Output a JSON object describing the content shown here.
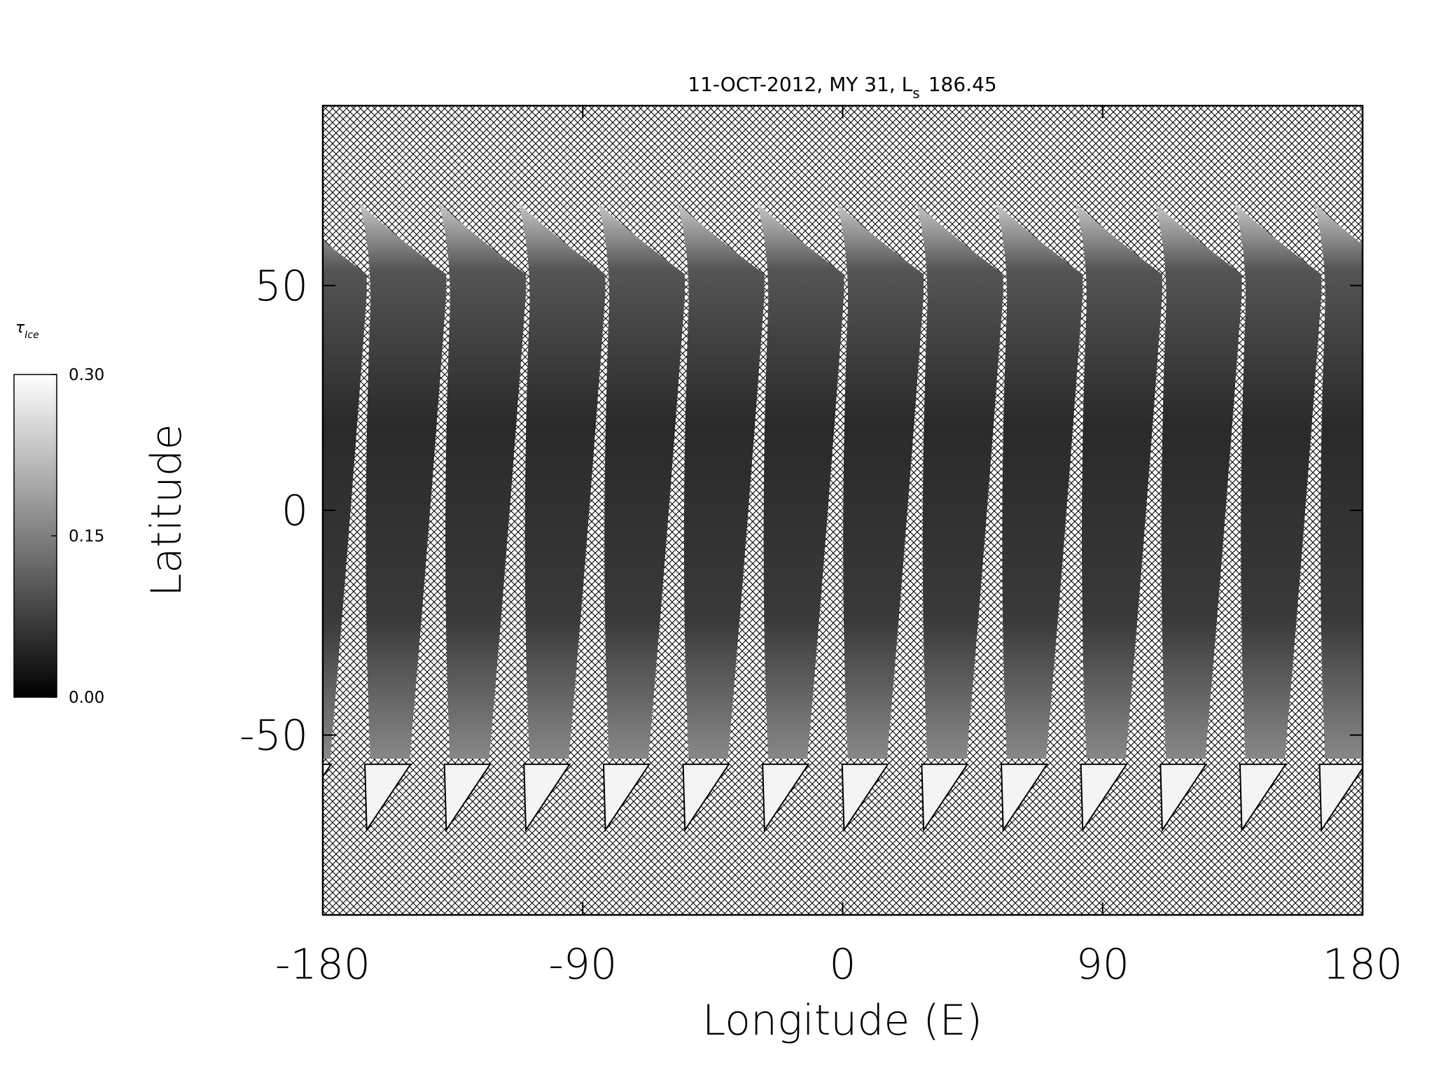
{
  "chart_data": {
    "type": "swath-map",
    "title": {
      "main": "11-OCT-2012, MY 31,  L",
      "sub": "s",
      "tail": "186.45"
    },
    "x_label": "Longitude (E)",
    "y_label": "Latitude",
    "xlim": [
      -180,
      180
    ],
    "xticks": [
      -180,
      -90,
      0,
      90,
      180
    ],
    "ylim": [
      -90,
      90
    ],
    "yticks": [
      -50,
      0,
      50
    ],
    "colorbar": {
      "label": {
        "symbol": "τ",
        "sub": "Ice"
      },
      "lim": [
        0,
        0.3
      ],
      "ticks": [
        {
          "value": 0,
          "label": "0.00"
        },
        {
          "value": 0.15,
          "label": "0.15"
        },
        {
          "value": 0.3,
          "label": "0.30"
        }
      ]
    }
  }
}
